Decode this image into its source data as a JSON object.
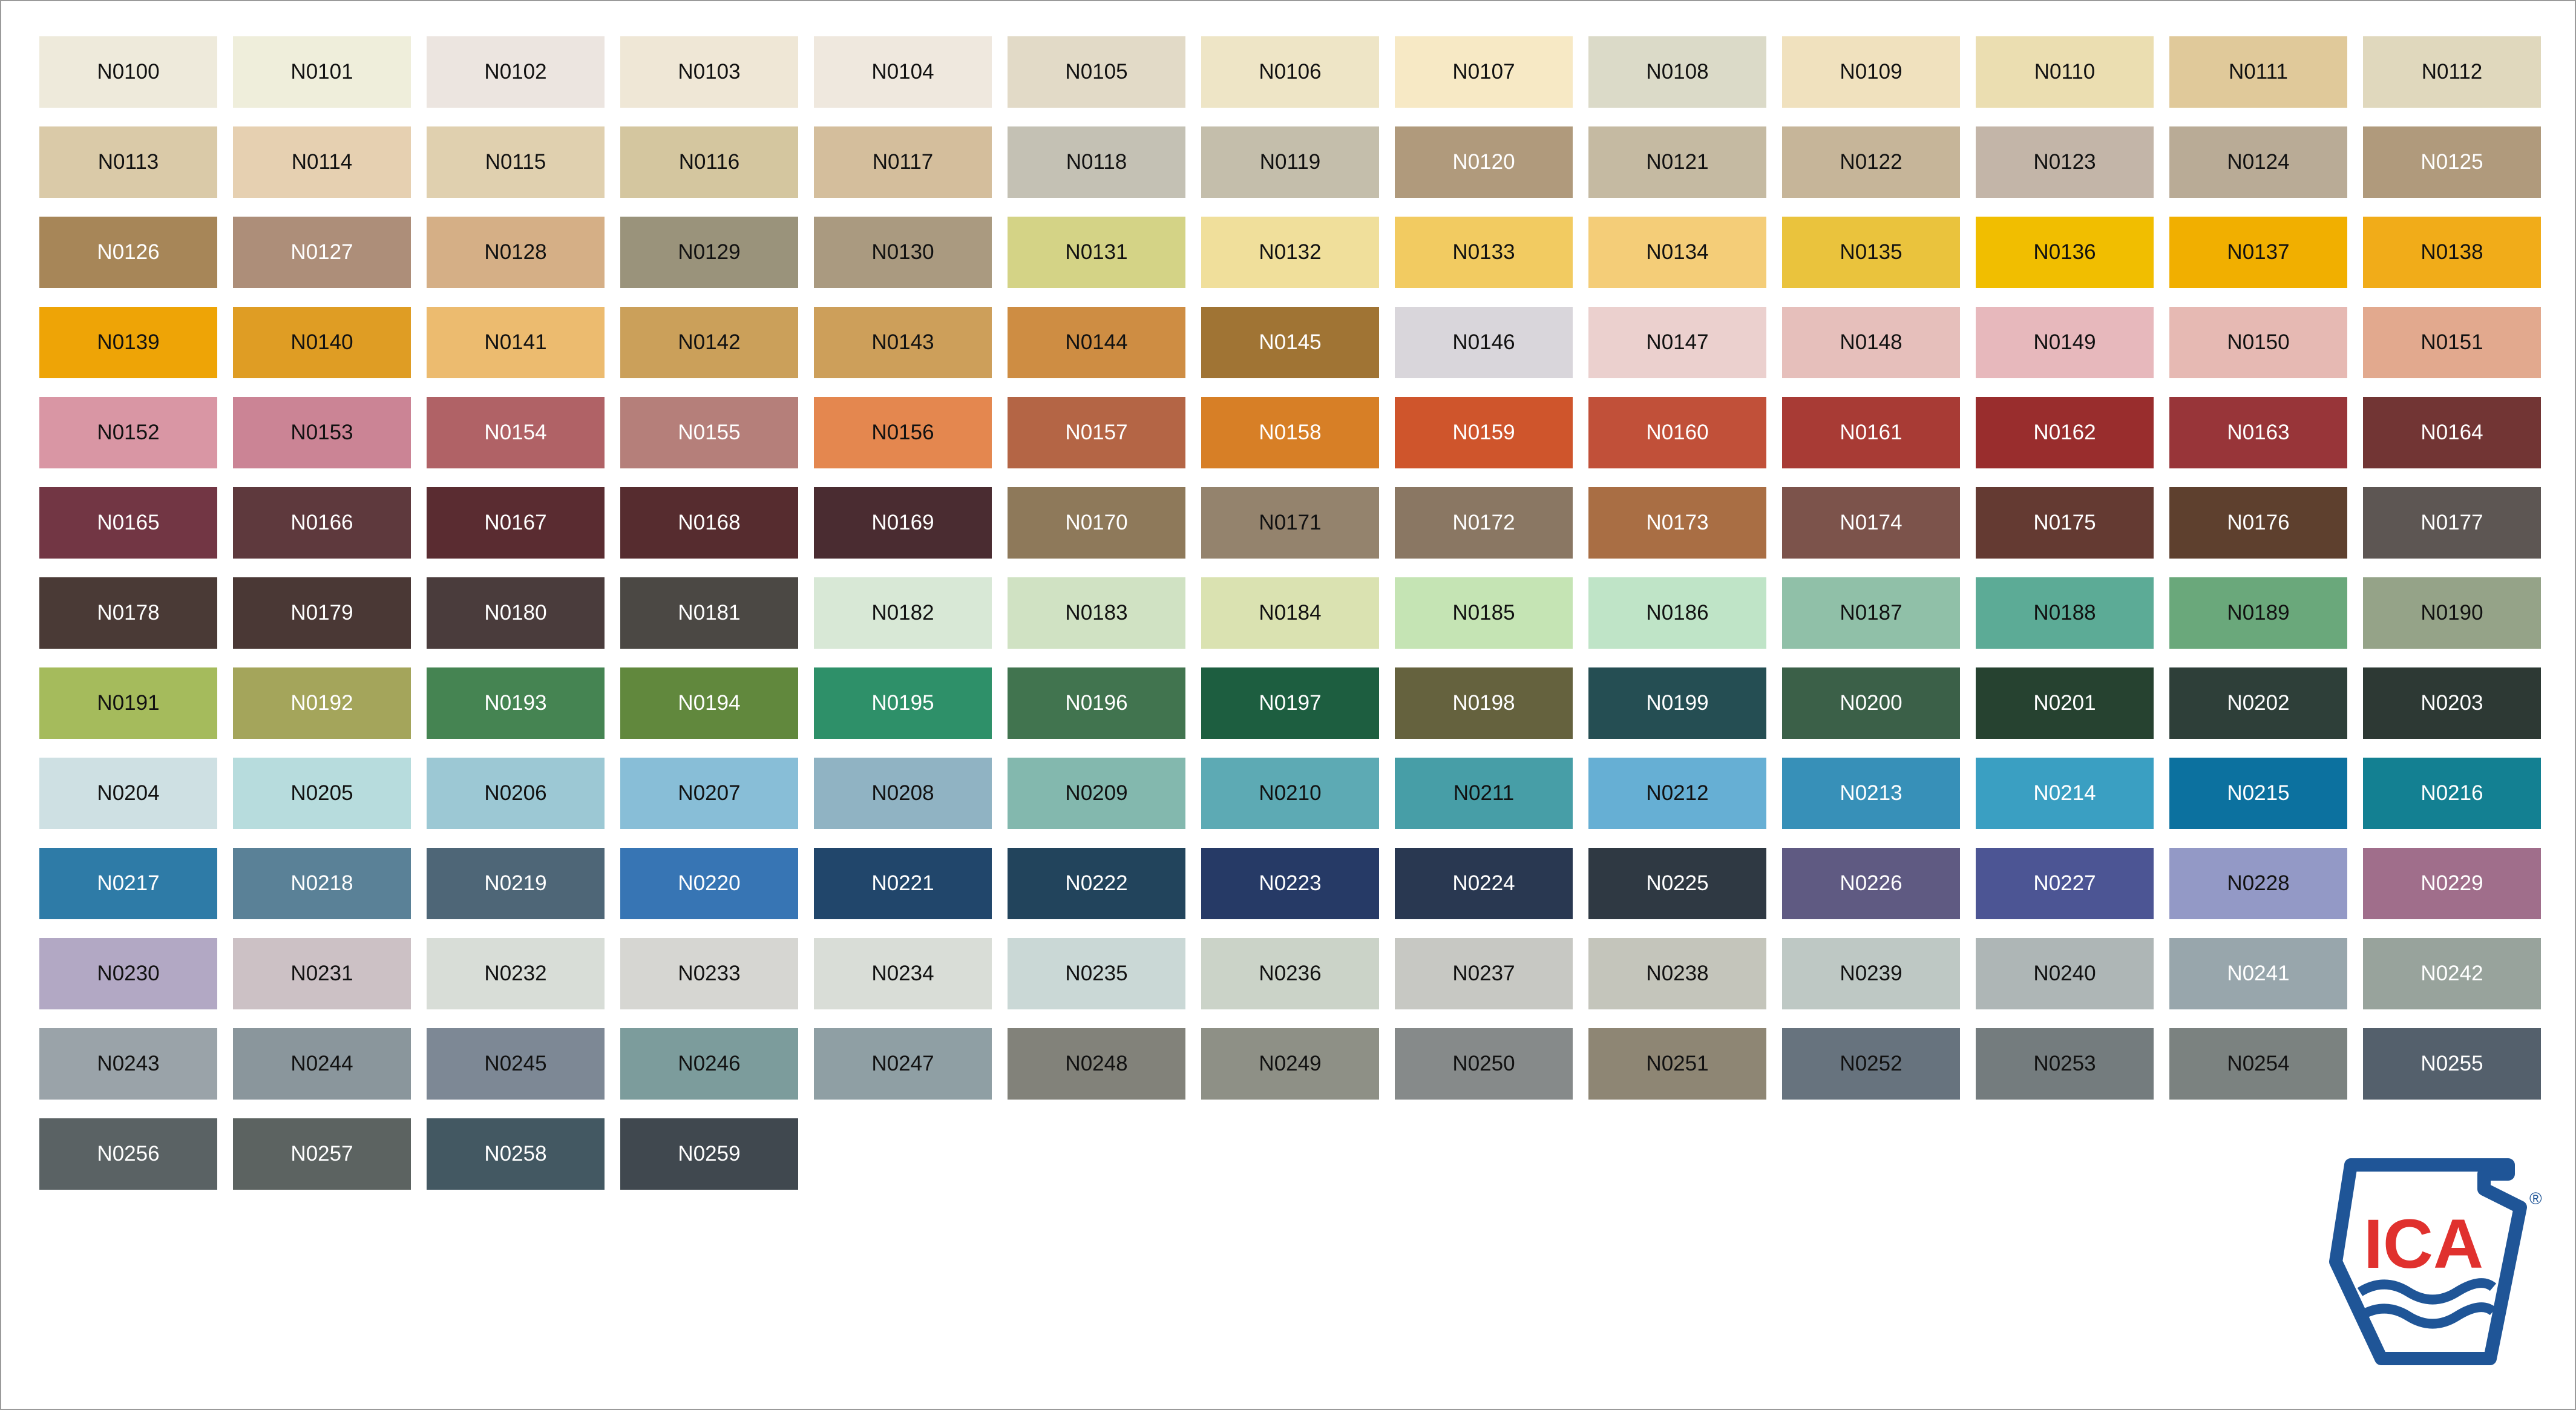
{
  "swatches": [
    {
      "code": "N0100",
      "color": "#EEEADB",
      "text": "dark"
    },
    {
      "code": "N0101",
      "color": "#EFEEDB",
      "text": "dark"
    },
    {
      "code": "N0102",
      "color": "#ECE5E0",
      "text": "dark"
    },
    {
      "code": "N0103",
      "color": "#EFE7D6",
      "text": "dark"
    },
    {
      "code": "N0104",
      "color": "#EFE8DE",
      "text": "dark"
    },
    {
      "code": "N0105",
      "color": "#E2DAC7",
      "text": "dark"
    },
    {
      "code": "N0106",
      "color": "#EEE5C6",
      "text": "dark"
    },
    {
      "code": "N0107",
      "color": "#F7E9C5",
      "text": "dark"
    },
    {
      "code": "N0108",
      "color": "#DBDAC8",
      "text": "dark"
    },
    {
      "code": "N0109",
      "color": "#F0E1BE",
      "text": "dark"
    },
    {
      "code": "N0110",
      "color": "#EBDEB1",
      "text": "dark"
    },
    {
      "code": "N0111",
      "color": "#E0C99A",
      "text": "dark"
    },
    {
      "code": "N0112",
      "color": "#E0D8BD",
      "text": "dark"
    },
    {
      "code": "N0113",
      "color": "#DACAA8",
      "text": "dark"
    },
    {
      "code": "N0114",
      "color": "#E6D0B1",
      "text": "dark"
    },
    {
      "code": "N0115",
      "color": "#E0D0AF",
      "text": "dark"
    },
    {
      "code": "N0116",
      "color": "#D4C69F",
      "text": "dark"
    },
    {
      "code": "N0117",
      "color": "#D4BE9C",
      "text": "dark"
    },
    {
      "code": "N0118",
      "color": "#C4C1B4",
      "text": "dark"
    },
    {
      "code": "N0119",
      "color": "#C4BEAB",
      "text": "dark"
    },
    {
      "code": "N0120",
      "color": "#B09A7C",
      "text": "light"
    },
    {
      "code": "N0121",
      "color": "#C5BAA2",
      "text": "dark"
    },
    {
      "code": "N0122",
      "color": "#C6B599",
      "text": "dark"
    },
    {
      "code": "N0123",
      "color": "#C3B5A8",
      "text": "dark"
    },
    {
      "code": "N0124",
      "color": "#B9AB96",
      "text": "dark"
    },
    {
      "code": "N0125",
      "color": "#B09A7C",
      "text": "light"
    },
    {
      "code": "N0126",
      "color": "#A78658",
      "text": "light"
    },
    {
      "code": "N0127",
      "color": "#AD8E79",
      "text": "light"
    },
    {
      "code": "N0128",
      "color": "#D5AF86",
      "text": "dark"
    },
    {
      "code": "N0129",
      "color": "#9A937B",
      "text": "dark"
    },
    {
      "code": "N0130",
      "color": "#AA9A80",
      "text": "dark"
    },
    {
      "code": "N0131",
      "color": "#D4D386",
      "text": "dark"
    },
    {
      "code": "N0132",
      "color": "#F0DF9B",
      "text": "dark"
    },
    {
      "code": "N0133",
      "color": "#F2CB61",
      "text": "dark"
    },
    {
      "code": "N0134",
      "color": "#F4CD78",
      "text": "dark"
    },
    {
      "code": "N0135",
      "color": "#EAC33D",
      "text": "dark"
    },
    {
      "code": "N0136",
      "color": "#F1BE00",
      "text": "dark"
    },
    {
      "code": "N0137",
      "color": "#F1AF00",
      "text": "dark"
    },
    {
      "code": "N0138",
      "color": "#F1AC19",
      "text": "dark"
    },
    {
      "code": "N0139",
      "color": "#EEA406",
      "text": "dark"
    },
    {
      "code": "N0140",
      "color": "#DF9D24",
      "text": "dark"
    },
    {
      "code": "N0141",
      "color": "#ECBB6F",
      "text": "dark"
    },
    {
      "code": "N0142",
      "color": "#CBA05A",
      "text": "dark"
    },
    {
      "code": "N0143",
      "color": "#CD9F5A",
      "text": "dark"
    },
    {
      "code": "N0144",
      "color": "#CE8D43",
      "text": "dark"
    },
    {
      "code": "N0145",
      "color": "#A07434",
      "text": "light"
    },
    {
      "code": "N0146",
      "color": "#D9D6DB",
      "text": "dark"
    },
    {
      "code": "N0147",
      "color": "#EBD0CE",
      "text": "dark"
    },
    {
      "code": "N0148",
      "color": "#E6BFBB",
      "text": "dark"
    },
    {
      "code": "N0149",
      "color": "#E7B8BC",
      "text": "dark"
    },
    {
      "code": "N0150",
      "color": "#E6B9B3",
      "text": "dark"
    },
    {
      "code": "N0151",
      "color": "#E2A98E",
      "text": "dark"
    },
    {
      "code": "N0152",
      "color": "#D996A4",
      "text": "dark"
    },
    {
      "code": "N0153",
      "color": "#CB8495",
      "text": "dark"
    },
    {
      "code": "N0154",
      "color": "#B06266",
      "text": "light"
    },
    {
      "code": "N0155",
      "color": "#B57F7A",
      "text": "light"
    },
    {
      "code": "N0156",
      "color": "#E4874F",
      "text": "dark"
    },
    {
      "code": "N0157",
      "color": "#B46545",
      "text": "light"
    },
    {
      "code": "N0158",
      "color": "#D77F26",
      "text": "light"
    },
    {
      "code": "N0159",
      "color": "#CF552C",
      "text": "light"
    },
    {
      "code": "N0160",
      "color": "#C15039",
      "text": "light"
    },
    {
      "code": "N0161",
      "color": "#A83B35",
      "text": "light"
    },
    {
      "code": "N0162",
      "color": "#992D2D",
      "text": "light"
    },
    {
      "code": "N0163",
      "color": "#983539",
      "text": "light"
    },
    {
      "code": "N0164",
      "color": "#723534",
      "text": "light"
    },
    {
      "code": "N0165",
      "color": "#723644",
      "text": "light"
    },
    {
      "code": "N0166",
      "color": "#5E393D",
      "text": "light"
    },
    {
      "code": "N0167",
      "color": "#5A2C31",
      "text": "light"
    },
    {
      "code": "N0168",
      "color": "#562C2F",
      "text": "light"
    },
    {
      "code": "N0169",
      "color": "#4A2C31",
      "text": "light"
    },
    {
      "code": "N0170",
      "color": "#8E795A",
      "text": "light"
    },
    {
      "code": "N0171",
      "color": "#94836D",
      "text": "dark"
    },
    {
      "code": "N0172",
      "color": "#8A7763",
      "text": "light"
    },
    {
      "code": "N0173",
      "color": "#A96E44",
      "text": "light"
    },
    {
      "code": "N0174",
      "color": "#7C534B",
      "text": "light"
    },
    {
      "code": "N0175",
      "color": "#643A32",
      "text": "light"
    },
    {
      "code": "N0176",
      "color": "#5E402E",
      "text": "light"
    },
    {
      "code": "N0177",
      "color": "#5D5653",
      "text": "light"
    },
    {
      "code": "N0178",
      "color": "#4A3A36",
      "text": "light"
    },
    {
      "code": "N0179",
      "color": "#4A3835",
      "text": "light"
    },
    {
      "code": "N0180",
      "color": "#4A3C3C",
      "text": "light"
    },
    {
      "code": "N0181",
      "color": "#4B4844",
      "text": "light"
    },
    {
      "code": "N0182",
      "color": "#D8E8D6",
      "text": "dark"
    },
    {
      "code": "N0183",
      "color": "#D0E2C3",
      "text": "dark"
    },
    {
      "code": "N0184",
      "color": "#DAE2B1",
      "text": "dark"
    },
    {
      "code": "N0185",
      "color": "#C5E4B4",
      "text": "dark"
    },
    {
      "code": "N0186",
      "color": "#BFE4C7",
      "text": "dark"
    },
    {
      "code": "N0187",
      "color": "#90C0A8",
      "text": "dark"
    },
    {
      "code": "N0188",
      "color": "#5CAB96",
      "text": "dark"
    },
    {
      "code": "N0189",
      "color": "#6AA87B",
      "text": "dark"
    },
    {
      "code": "N0190",
      "color": "#95A388",
      "text": "dark"
    },
    {
      "code": "N0191",
      "color": "#A5BB5C",
      "text": "dark"
    },
    {
      "code": "N0192",
      "color": "#A4A55B",
      "text": "light"
    },
    {
      "code": "N0193",
      "color": "#458452",
      "text": "light"
    },
    {
      "code": "N0194",
      "color": "#61883D",
      "text": "light"
    },
    {
      "code": "N0195",
      "color": "#2E9069",
      "text": "light"
    },
    {
      "code": "N0196",
      "color": "#41744F",
      "text": "light"
    },
    {
      "code": "N0197",
      "color": "#1D5E40",
      "text": "light"
    },
    {
      "code": "N0198",
      "color": "#65623E",
      "text": "light"
    },
    {
      "code": "N0199",
      "color": "#254E53",
      "text": "light"
    },
    {
      "code": "N0200",
      "color": "#3B6048",
      "text": "light"
    },
    {
      "code": "N0201",
      "color": "#264230",
      "text": "light"
    },
    {
      "code": "N0202",
      "color": "#2E3F39",
      "text": "light"
    },
    {
      "code": "N0203",
      "color": "#2D3934",
      "text": "light"
    },
    {
      "code": "N0204",
      "color": "#CEE0E3",
      "text": "dark"
    },
    {
      "code": "N0205",
      "color": "#B7DCDD",
      "text": "dark"
    },
    {
      "code": "N0206",
      "color": "#9CC8D4",
      "text": "dark"
    },
    {
      "code": "N0207",
      "color": "#88BED7",
      "text": "dark"
    },
    {
      "code": "N0208",
      "color": "#90B3C3",
      "text": "dark"
    },
    {
      "code": "N0209",
      "color": "#83B8AE",
      "text": "dark"
    },
    {
      "code": "N0210",
      "color": "#5DAAB4",
      "text": "dark"
    },
    {
      "code": "N0211",
      "color": "#479EA7",
      "text": "dark"
    },
    {
      "code": "N0212",
      "color": "#66AFD4",
      "text": "dark"
    },
    {
      "code": "N0213",
      "color": "#3790B8",
      "text": "light"
    },
    {
      "code": "N0214",
      "color": "#3A9FC2",
      "text": "light"
    },
    {
      "code": "N0215",
      "color": "#0C719F",
      "text": "light"
    },
    {
      "code": "N0216",
      "color": "#138092",
      "text": "light"
    },
    {
      "code": "N0217",
      "color": "#2E7BA7",
      "text": "light"
    },
    {
      "code": "N0218",
      "color": "#5A8197",
      "text": "light"
    },
    {
      "code": "N0219",
      "color": "#4E6677",
      "text": "light"
    },
    {
      "code": "N0220",
      "color": "#3775B4",
      "text": "light"
    },
    {
      "code": "N0221",
      "color": "#21466B",
      "text": "light"
    },
    {
      "code": "N0222",
      "color": "#22445C",
      "text": "light"
    },
    {
      "code": "N0223",
      "color": "#263A66",
      "text": "light"
    },
    {
      "code": "N0224",
      "color": "#293851",
      "text": "light"
    },
    {
      "code": "N0225",
      "color": "#2F3943",
      "text": "light"
    },
    {
      "code": "N0226",
      "color": "#5F5A82",
      "text": "light"
    },
    {
      "code": "N0227",
      "color": "#4C5594",
      "text": "light"
    },
    {
      "code": "N0228",
      "color": "#9399C6",
      "text": "dark"
    },
    {
      "code": "N0229",
      "color": "#A06E8B",
      "text": "light"
    },
    {
      "code": "N0230",
      "color": "#B2A8C4",
      "text": "dark"
    },
    {
      "code": "N0231",
      "color": "#CCC1C5",
      "text": "dark"
    },
    {
      "code": "N0232",
      "color": "#D8DDD7",
      "text": "dark"
    },
    {
      "code": "N0233",
      "color": "#D6D6D2",
      "text": "dark"
    },
    {
      "code": "N0234",
      "color": "#D9DDD7",
      "text": "dark"
    },
    {
      "code": "N0235",
      "color": "#CAD8D6",
      "text": "dark"
    },
    {
      "code": "N0236",
      "color": "#CBD3C8",
      "text": "dark"
    },
    {
      "code": "N0237",
      "color": "#C7C8C3",
      "text": "dark"
    },
    {
      "code": "N0238",
      "color": "#C4C5BB",
      "text": "dark"
    },
    {
      "code": "N0239",
      "color": "#BEC8C4",
      "text": "dark"
    },
    {
      "code": "N0240",
      "color": "#AEB6B6",
      "text": "dark"
    },
    {
      "code": "N0241",
      "color": "#98A6AC",
      "text": "light"
    },
    {
      "code": "N0242",
      "color": "#98A39C",
      "text": "light"
    },
    {
      "code": "N0243",
      "color": "#9AA3A9",
      "text": "dark"
    },
    {
      "code": "N0244",
      "color": "#8A969C",
      "text": "dark"
    },
    {
      "code": "N0245",
      "color": "#7D8895",
      "text": "dark"
    },
    {
      "code": "N0246",
      "color": "#7C9C9C",
      "text": "dark"
    },
    {
      "code": "N0247",
      "color": "#8F9FA4",
      "text": "dark"
    },
    {
      "code": "N0248",
      "color": "#82827A",
      "text": "dark"
    },
    {
      "code": "N0249",
      "color": "#8E9086",
      "text": "dark"
    },
    {
      "code": "N0250",
      "color": "#868A8A",
      "text": "dark"
    },
    {
      "code": "N0251",
      "color": "#8E8674",
      "text": "dark"
    },
    {
      "code": "N0252",
      "color": "#67737E",
      "text": "dark"
    },
    {
      "code": "N0253",
      "color": "#747C7E",
      "text": "dark"
    },
    {
      "code": "N0254",
      "color": "#7B8280",
      "text": "dark"
    },
    {
      "code": "N0255",
      "color": "#54606C",
      "text": "light"
    },
    {
      "code": "N0256",
      "color": "#5A6264",
      "text": "light"
    },
    {
      "code": "N0257",
      "color": "#5C6361",
      "text": "light"
    },
    {
      "code": "N0258",
      "color": "#435862",
      "text": "light"
    },
    {
      "code": "N0259",
      "color": "#40484F",
      "text": "light"
    }
  ],
  "logo": {
    "text": "ICA",
    "registered": "®",
    "blue": "#1F5597",
    "red": "#E0312E"
  }
}
